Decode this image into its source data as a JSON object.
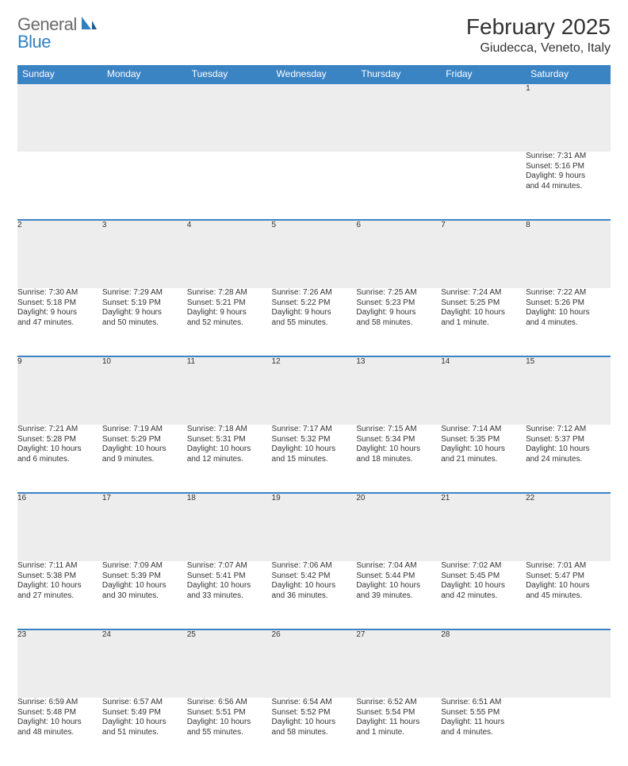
{
  "logo": {
    "word1": "General",
    "word2": "Blue"
  },
  "title": "February 2025",
  "location": "Giudecca, Veneto, Italy",
  "colors": {
    "header_bg": "#3b84c4",
    "header_text": "#ffffff",
    "daynum_bg": "#ededed",
    "border": "#3b84c4",
    "text": "#333333",
    "logo_gray": "#6a6a6a",
    "logo_blue": "#2f80c2",
    "page_bg": "#ffffff"
  },
  "typography": {
    "title_fontsize": 28,
    "location_fontsize": 16,
    "header_fontsize": 12,
    "daynum_fontsize": 12,
    "detail_fontsize": 10
  },
  "weekdays": [
    "Sunday",
    "Monday",
    "Tuesday",
    "Wednesday",
    "Thursday",
    "Friday",
    "Saturday"
  ],
  "weeks": [
    [
      null,
      null,
      null,
      null,
      null,
      null,
      {
        "n": "1",
        "sr": "Sunrise: 7:31 AM",
        "ss": "Sunset: 5:16 PM",
        "d1": "Daylight: 9 hours",
        "d2": "and 44 minutes."
      }
    ],
    [
      {
        "n": "2",
        "sr": "Sunrise: 7:30 AM",
        "ss": "Sunset: 5:18 PM",
        "d1": "Daylight: 9 hours",
        "d2": "and 47 minutes."
      },
      {
        "n": "3",
        "sr": "Sunrise: 7:29 AM",
        "ss": "Sunset: 5:19 PM",
        "d1": "Daylight: 9 hours",
        "d2": "and 50 minutes."
      },
      {
        "n": "4",
        "sr": "Sunrise: 7:28 AM",
        "ss": "Sunset: 5:21 PM",
        "d1": "Daylight: 9 hours",
        "d2": "and 52 minutes."
      },
      {
        "n": "5",
        "sr": "Sunrise: 7:26 AM",
        "ss": "Sunset: 5:22 PM",
        "d1": "Daylight: 9 hours",
        "d2": "and 55 minutes."
      },
      {
        "n": "6",
        "sr": "Sunrise: 7:25 AM",
        "ss": "Sunset: 5:23 PM",
        "d1": "Daylight: 9 hours",
        "d2": "and 58 minutes."
      },
      {
        "n": "7",
        "sr": "Sunrise: 7:24 AM",
        "ss": "Sunset: 5:25 PM",
        "d1": "Daylight: 10 hours",
        "d2": "and 1 minute."
      },
      {
        "n": "8",
        "sr": "Sunrise: 7:22 AM",
        "ss": "Sunset: 5:26 PM",
        "d1": "Daylight: 10 hours",
        "d2": "and 4 minutes."
      }
    ],
    [
      {
        "n": "9",
        "sr": "Sunrise: 7:21 AM",
        "ss": "Sunset: 5:28 PM",
        "d1": "Daylight: 10 hours",
        "d2": "and 6 minutes."
      },
      {
        "n": "10",
        "sr": "Sunrise: 7:19 AM",
        "ss": "Sunset: 5:29 PM",
        "d1": "Daylight: 10 hours",
        "d2": "and 9 minutes."
      },
      {
        "n": "11",
        "sr": "Sunrise: 7:18 AM",
        "ss": "Sunset: 5:31 PM",
        "d1": "Daylight: 10 hours",
        "d2": "and 12 minutes."
      },
      {
        "n": "12",
        "sr": "Sunrise: 7:17 AM",
        "ss": "Sunset: 5:32 PM",
        "d1": "Daylight: 10 hours",
        "d2": "and 15 minutes."
      },
      {
        "n": "13",
        "sr": "Sunrise: 7:15 AM",
        "ss": "Sunset: 5:34 PM",
        "d1": "Daylight: 10 hours",
        "d2": "and 18 minutes."
      },
      {
        "n": "14",
        "sr": "Sunrise: 7:14 AM",
        "ss": "Sunset: 5:35 PM",
        "d1": "Daylight: 10 hours",
        "d2": "and 21 minutes."
      },
      {
        "n": "15",
        "sr": "Sunrise: 7:12 AM",
        "ss": "Sunset: 5:37 PM",
        "d1": "Daylight: 10 hours",
        "d2": "and 24 minutes."
      }
    ],
    [
      {
        "n": "16",
        "sr": "Sunrise: 7:11 AM",
        "ss": "Sunset: 5:38 PM",
        "d1": "Daylight: 10 hours",
        "d2": "and 27 minutes."
      },
      {
        "n": "17",
        "sr": "Sunrise: 7:09 AM",
        "ss": "Sunset: 5:39 PM",
        "d1": "Daylight: 10 hours",
        "d2": "and 30 minutes."
      },
      {
        "n": "18",
        "sr": "Sunrise: 7:07 AM",
        "ss": "Sunset: 5:41 PM",
        "d1": "Daylight: 10 hours",
        "d2": "and 33 minutes."
      },
      {
        "n": "19",
        "sr": "Sunrise: 7:06 AM",
        "ss": "Sunset: 5:42 PM",
        "d1": "Daylight: 10 hours",
        "d2": "and 36 minutes."
      },
      {
        "n": "20",
        "sr": "Sunrise: 7:04 AM",
        "ss": "Sunset: 5:44 PM",
        "d1": "Daylight: 10 hours",
        "d2": "and 39 minutes."
      },
      {
        "n": "21",
        "sr": "Sunrise: 7:02 AM",
        "ss": "Sunset: 5:45 PM",
        "d1": "Daylight: 10 hours",
        "d2": "and 42 minutes."
      },
      {
        "n": "22",
        "sr": "Sunrise: 7:01 AM",
        "ss": "Sunset: 5:47 PM",
        "d1": "Daylight: 10 hours",
        "d2": "and 45 minutes."
      }
    ],
    [
      {
        "n": "23",
        "sr": "Sunrise: 6:59 AM",
        "ss": "Sunset: 5:48 PM",
        "d1": "Daylight: 10 hours",
        "d2": "and 48 minutes."
      },
      {
        "n": "24",
        "sr": "Sunrise: 6:57 AM",
        "ss": "Sunset: 5:49 PM",
        "d1": "Daylight: 10 hours",
        "d2": "and 51 minutes."
      },
      {
        "n": "25",
        "sr": "Sunrise: 6:56 AM",
        "ss": "Sunset: 5:51 PM",
        "d1": "Daylight: 10 hours",
        "d2": "and 55 minutes."
      },
      {
        "n": "26",
        "sr": "Sunrise: 6:54 AM",
        "ss": "Sunset: 5:52 PM",
        "d1": "Daylight: 10 hours",
        "d2": "and 58 minutes."
      },
      {
        "n": "27",
        "sr": "Sunrise: 6:52 AM",
        "ss": "Sunset: 5:54 PM",
        "d1": "Daylight: 11 hours",
        "d2": "and 1 minute."
      },
      {
        "n": "28",
        "sr": "Sunrise: 6:51 AM",
        "ss": "Sunset: 5:55 PM",
        "d1": "Daylight: 11 hours",
        "d2": "and 4 minutes."
      },
      null
    ]
  ]
}
